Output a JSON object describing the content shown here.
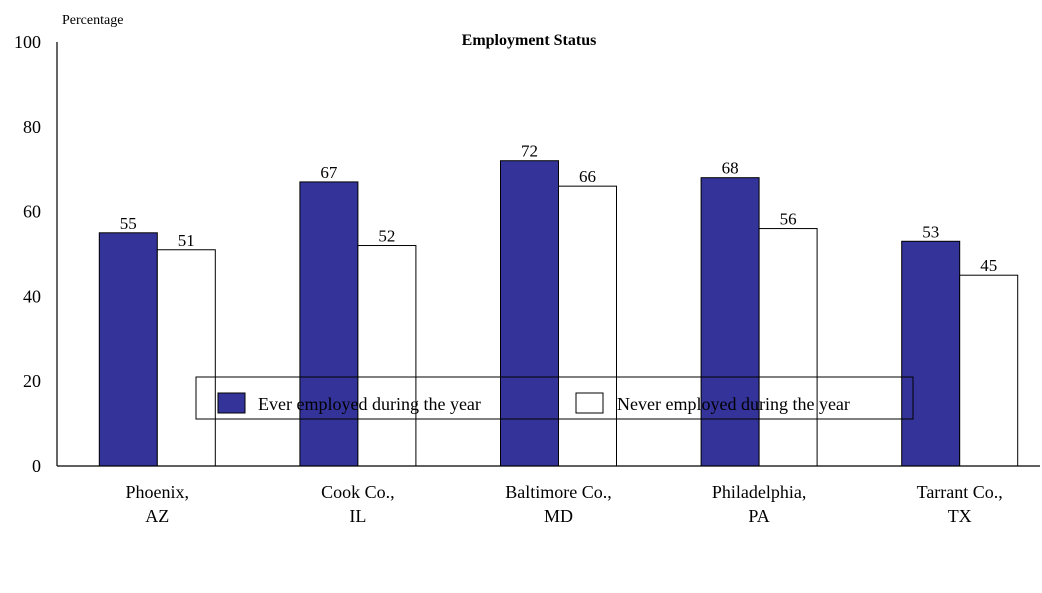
{
  "chart_data": {
    "type": "bar",
    "title": "Employment Status",
    "ylabel": "Percentage",
    "xlabel": "",
    "ylim": [
      0,
      100
    ],
    "yticks": [
      "0",
      "20",
      "40",
      "60",
      "80",
      "100"
    ],
    "categories": [
      [
        "Phoenix,",
        "AZ"
      ],
      [
        "Cook Co.,",
        "IL"
      ],
      [
        "Baltimore Co.,",
        "MD"
      ],
      [
        "Philadelphia,",
        "PA"
      ],
      [
        "Tarrant Co.,",
        "TX"
      ]
    ],
    "series": [
      {
        "name": "Ever employed during the year",
        "values": [
          55,
          67,
          72,
          68,
          53
        ],
        "color": "#333399"
      },
      {
        "name": "Never employed during the year",
        "values": [
          51,
          52,
          66,
          56,
          45
        ],
        "color": "#ffffff"
      }
    ],
    "legend_position": "bottom",
    "grid": false
  }
}
